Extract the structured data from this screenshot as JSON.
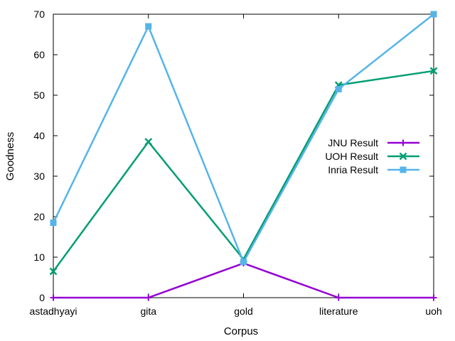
{
  "chart_data": {
    "type": "line",
    "title": "",
    "xlabel": "Corpus",
    "ylabel": "Goodness",
    "categories": [
      "astadhyayi",
      "gita",
      "gold",
      "literature",
      "uoh"
    ],
    "ylim": [
      0,
      70
    ],
    "yticks": [
      0,
      10,
      20,
      30,
      40,
      50,
      60,
      70
    ],
    "grid": false,
    "legend_position": "right",
    "series": [
      {
        "name": "JNU Result",
        "color": "#9400d3",
        "marker": "plus-icon",
        "values": [
          0,
          0,
          8.5,
          0,
          0
        ]
      },
      {
        "name": "UOH Result",
        "color": "#009e73",
        "marker": "cross-icon",
        "values": [
          6.5,
          38.5,
          9.5,
          52.5,
          56
        ]
      },
      {
        "name": "Inria Result",
        "color": "#56b4e9",
        "marker": "square-icon",
        "values": [
          18.5,
          67,
          8.8,
          51.5,
          70
        ]
      }
    ]
  }
}
